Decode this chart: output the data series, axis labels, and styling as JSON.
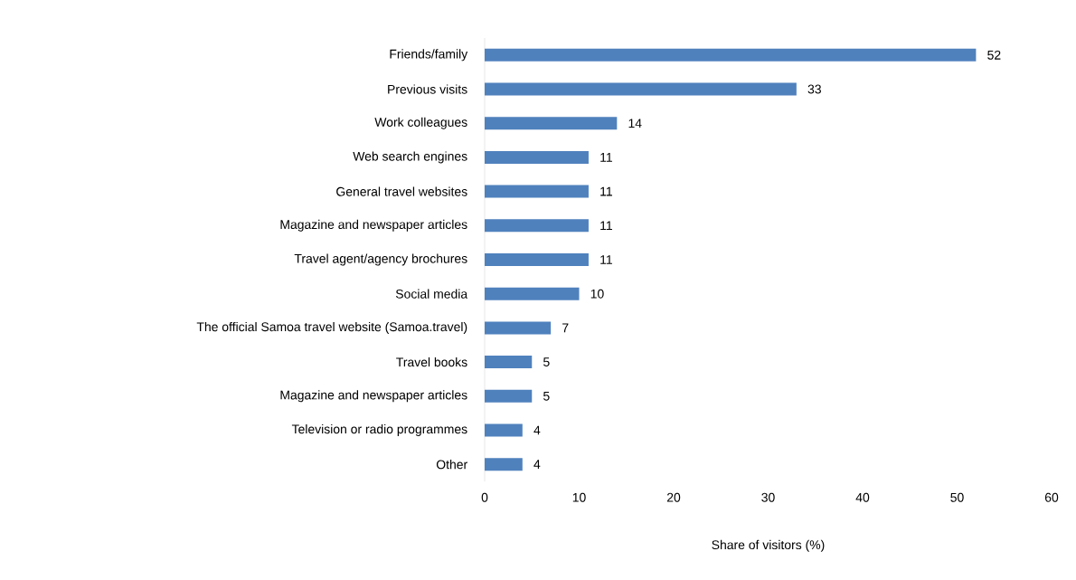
{
  "chart_data": {
    "type": "bar",
    "orientation": "horizontal",
    "xlabel": "Share of visitors (%)",
    "categories": [
      "Friends/family",
      "Previous visits",
      "Work colleagues",
      "Web search engines",
      "General travel websites",
      "Magazine and newspaper articles",
      "Travel agent/agency brochures",
      "Social media",
      "The official Samoa travel website (Samoa.travel)",
      "Travel books",
      "Magazine and newspaper articles",
      "Television or radio programmes",
      "Other"
    ],
    "values": [
      52,
      33,
      14,
      11,
      11,
      11,
      11,
      10,
      7,
      5,
      5,
      4,
      4
    ],
    "color": "#4f81bd",
    "xlim": [
      0,
      60
    ],
    "xticks": [
      0,
      10,
      20,
      30,
      40,
      50,
      60
    ],
    "data_labels": true
  }
}
